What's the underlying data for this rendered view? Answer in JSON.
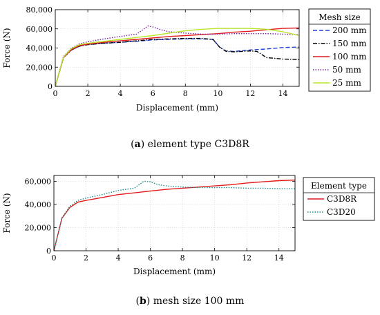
{
  "chart_data": [
    {
      "type": "line",
      "caption_letter": "a",
      "caption_text": "element type C3D8R",
      "xlabel": "Displacement (mm)",
      "ylabel": "Force (N)",
      "xlim": [
        0,
        15
      ],
      "ylim": [
        0,
        80000
      ],
      "xticks": [
        0,
        2,
        4,
        6,
        8,
        10,
        12,
        14
      ],
      "yticks": [
        0,
        20000,
        40000,
        60000,
        80000
      ],
      "ytick_labels": [
        "0",
        "20,000",
        "40,000",
        "60,000",
        "80,000"
      ],
      "grid": true,
      "legend_title": "Mesh size",
      "legend_position": "right-outside",
      "series": [
        {
          "name": "200 mm",
          "color": "#1f3fd6",
          "dash": "dashed",
          "x": [
            0,
            0.5,
            1,
            1.5,
            2,
            3,
            4,
            5,
            6,
            7,
            8,
            9,
            9.7,
            10.1,
            10.5,
            11,
            12,
            13,
            14,
            15
          ],
          "y": [
            0,
            30000,
            38000,
            42000,
            43500,
            45000,
            46000,
            47000,
            48500,
            49000,
            49500,
            49500,
            49000,
            41000,
            37000,
            36500,
            38000,
            39000,
            40500,
            41000
          ]
        },
        {
          "name": "150 mm",
          "color": "#000000",
          "dash": "dashdot",
          "x": [
            0,
            0.5,
            1,
            1.5,
            2,
            3,
            4,
            5,
            6,
            7,
            8,
            9,
            9.7,
            10.1,
            10.5,
            11,
            12,
            12.4,
            13,
            14,
            15
          ],
          "y": [
            0,
            30000,
            38000,
            42000,
            43500,
            45000,
            46000,
            47500,
            49000,
            49500,
            50000,
            50000,
            49000,
            41000,
            36500,
            36000,
            37000,
            36500,
            30000,
            28500,
            28000
          ]
        },
        {
          "name": "100 mm",
          "color": "#e41a1a",
          "dash": "solid",
          "x": [
            0,
            0.5,
            1,
            1.5,
            2,
            3,
            4,
            5,
            6,
            7,
            8,
            9,
            10,
            11,
            12,
            13,
            14,
            15
          ],
          "y": [
            0,
            30000,
            38500,
            42500,
            44000,
            46000,
            47500,
            49000,
            50500,
            52000,
            53000,
            54000,
            55000,
            56500,
            57500,
            59000,
            60500,
            61000
          ]
        },
        {
          "name": "50 mm",
          "color": "#7a1fa2",
          "dash": "dotted",
          "x": [
            0,
            0.5,
            1,
            1.5,
            2,
            3,
            4,
            5,
            5.3,
            5.7,
            6,
            6.5,
            7,
            8,
            9,
            10,
            11,
            12,
            13,
            14,
            15
          ],
          "y": [
            0,
            31000,
            40000,
            44500,
            46500,
            49500,
            52000,
            54500,
            58000,
            63000,
            62000,
            59000,
            57000,
            55500,
            54500,
            54500,
            55000,
            55000,
            55000,
            54500,
            54000
          ]
        },
        {
          "name": "25 mm",
          "color": "#b8e62b",
          "dash": "solid",
          "x": [
            0,
            0.5,
            1,
            1.5,
            2,
            3,
            4,
            5,
            6,
            7,
            8,
            9,
            10,
            11,
            12,
            13,
            14,
            15
          ],
          "y": [
            0,
            30500,
            39500,
            43500,
            45000,
            47000,
            49000,
            51000,
            53000,
            55500,
            58000,
            59500,
            60500,
            60500,
            60500,
            59500,
            57000,
            53000
          ]
        }
      ]
    },
    {
      "type": "line",
      "caption_letter": "b",
      "caption_text": "mesh size 100 mm",
      "xlabel": "Displacement (mm)",
      "ylabel": "Force (N)",
      "xlim": [
        0,
        15
      ],
      "ylim": [
        0,
        65000
      ],
      "xticks": [
        0,
        2,
        4,
        6,
        8,
        10,
        12,
        14
      ],
      "yticks": [
        0,
        20000,
        40000,
        60000
      ],
      "ytick_labels": [
        "0",
        "20,000",
        "40,000",
        "60,000"
      ],
      "grid": true,
      "legend_title": "Element type",
      "legend_position": "right-outside",
      "series": [
        {
          "name": "C3D8R",
          "color": "#e41a1a",
          "dash": "solid",
          "x": [
            0,
            0.5,
            1,
            1.5,
            2,
            3,
            4,
            5,
            6,
            7,
            8,
            9,
            10,
            11,
            12,
            13,
            14,
            15
          ],
          "y": [
            0,
            28000,
            37500,
            42000,
            43500,
            46000,
            48500,
            50000,
            51500,
            53000,
            54000,
            55000,
            56000,
            57000,
            58500,
            59500,
            60500,
            61000
          ]
        },
        {
          "name": "C3D20",
          "color": "#1a8a8a",
          "dash": "dotted",
          "x": [
            0,
            0.5,
            1,
            1.5,
            2,
            3,
            4,
            5,
            5.3,
            5.6,
            6,
            6.5,
            7,
            8,
            9,
            10,
            11,
            12,
            13,
            14,
            15
          ],
          "y": [
            0,
            28500,
            38500,
            43500,
            45500,
            48500,
            52000,
            54000,
            57000,
            60000,
            59500,
            57000,
            56000,
            55000,
            54500,
            54500,
            54500,
            54000,
            54000,
            53500,
            53500
          ]
        }
      ]
    }
  ]
}
